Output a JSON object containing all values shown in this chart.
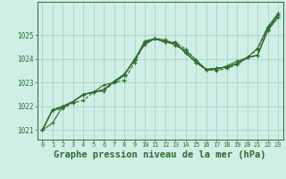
{
  "background_color": "#ceeee6",
  "grid_color": "#9ecfbe",
  "line_color": "#2d6e2d",
  "title": "Graphe pression niveau de la mer (hPa)",
  "title_fontsize": 7.5,
  "xlim": [
    -0.5,
    23.5
  ],
  "ylim": [
    1020.6,
    1026.4
  ],
  "yticks": [
    1021,
    1022,
    1023,
    1024,
    1025
  ],
  "xticks": [
    0,
    1,
    2,
    3,
    4,
    5,
    6,
    7,
    8,
    9,
    10,
    11,
    12,
    13,
    14,
    15,
    16,
    17,
    18,
    19,
    20,
    21,
    22,
    23
  ],
  "series": [
    [
      1021.0,
      1021.85,
      1021.95,
      1022.2,
      1022.5,
      1022.6,
      1022.7,
      1023.05,
      1023.35,
      1023.95,
      1024.75,
      1024.85,
      1024.7,
      1024.65,
      1024.25,
      1023.85,
      1023.55,
      1023.6,
      1023.65,
      1023.8,
      1024.05,
      1024.15,
      1025.25,
      1025.85
    ],
    [
      1021.0,
      1021.85,
      1022.0,
      1022.2,
      1022.5,
      1022.6,
      1022.7,
      1023.05,
      1023.35,
      1023.95,
      1024.7,
      1024.85,
      1024.7,
      1024.65,
      1024.25,
      1023.85,
      1023.55,
      1023.6,
      1023.65,
      1023.8,
      1024.05,
      1024.15,
      1025.2,
      1025.75
    ],
    [
      1021.0,
      1021.85,
      1022.0,
      1022.2,
      1022.5,
      1022.6,
      1022.7,
      1023.05,
      1023.35,
      1023.95,
      1024.7,
      1024.85,
      1024.7,
      1024.65,
      1024.25,
      1023.85,
      1023.55,
      1023.6,
      1023.65,
      1023.8,
      1024.05,
      1024.15,
      1025.2,
      1025.75
    ],
    [
      1021.0,
      1021.85,
      1021.9,
      1022.15,
      1022.25,
      1022.6,
      1022.65,
      1023.0,
      1023.1,
      1023.85,
      1024.65,
      1024.85,
      1024.75,
      1024.7,
      1024.4,
      1023.95,
      1023.55,
      1023.5,
      1023.6,
      1023.75,
      1024.05,
      1024.4,
      1025.3,
      1025.9
    ],
    [
      1021.0,
      1021.3,
      1022.0,
      1022.2,
      1022.5,
      1022.6,
      1022.9,
      1023.0,
      1023.3,
      1024.0,
      1024.6,
      1024.85,
      1024.8,
      1024.55,
      1024.35,
      1023.95,
      1023.55,
      1023.55,
      1023.7,
      1023.9,
      1024.05,
      1024.45,
      1025.35,
      1025.9
    ]
  ]
}
